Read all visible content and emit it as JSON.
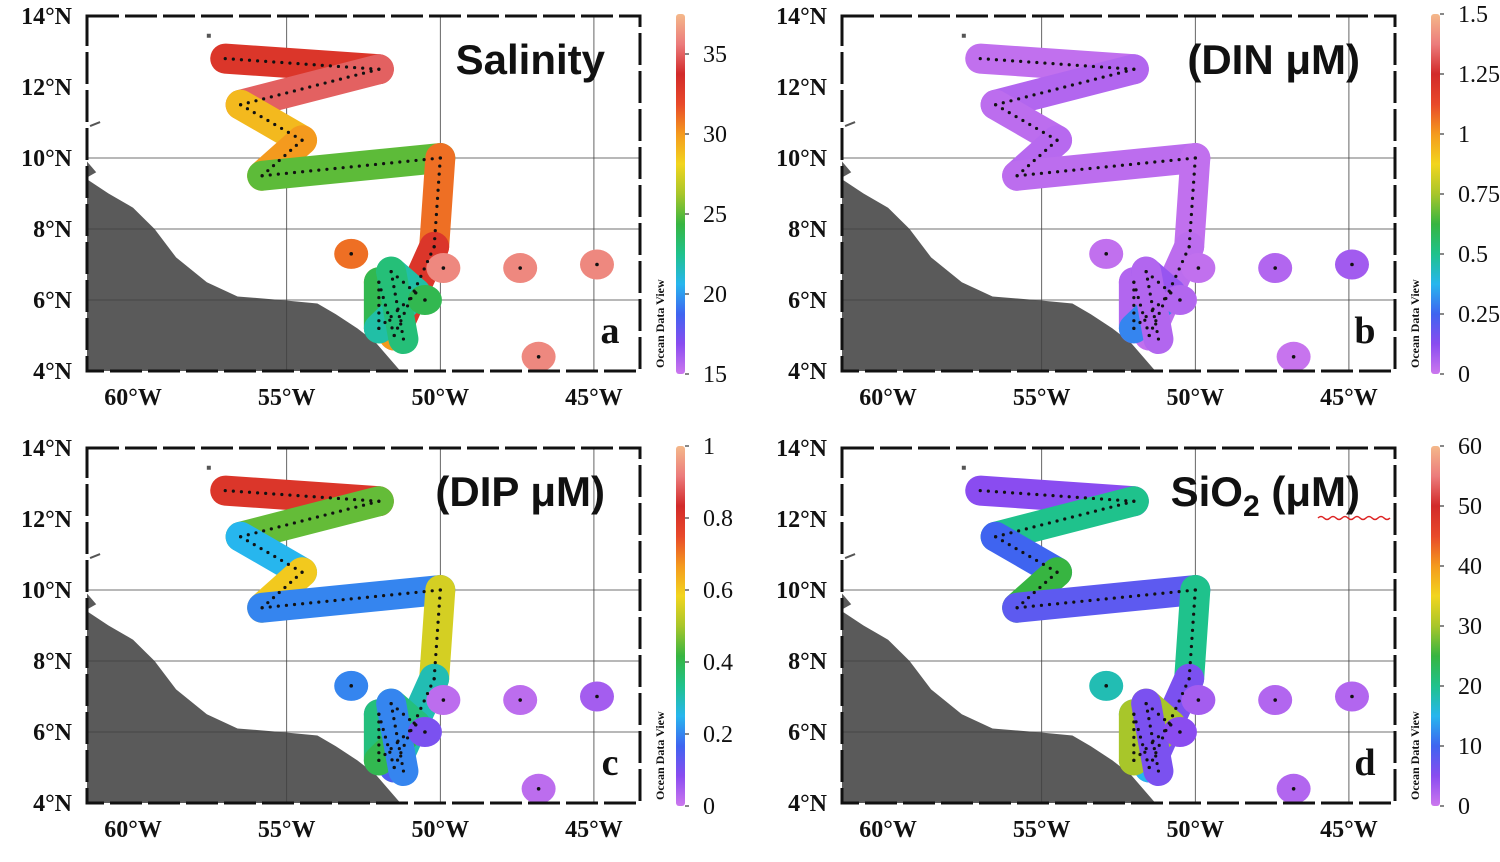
{
  "colors": {
    "land": "#5a5a5a",
    "grid": "#404040",
    "station": "#111111",
    "cbar_stops": [
      "#cc77ee",
      "#8a4cf0",
      "#3f64f0",
      "#27b6ee",
      "#1fc28c",
      "#37b541",
      "#a8c62a",
      "#f2d51e",
      "#f49a1e",
      "#e8492a",
      "#d22a2a",
      "#ec7c7c",
      "#f4b88a"
    ]
  },
  "axes": {
    "lat_labels": [
      "14°N",
      "12°N",
      "10°N",
      "8°N",
      "6°N",
      "4°N"
    ],
    "lon_labels": [
      "60°W",
      "55°W",
      "50°W",
      "45°W"
    ],
    "lat_range": [
      4,
      14
    ],
    "lon_range": [
      -61.5,
      -43.5
    ]
  },
  "colorbar_label": "Ocean Data View",
  "panels": [
    {
      "id": "a",
      "letter": "a",
      "title": "Salinity",
      "title_sub": "",
      "title_tail": "",
      "cbar_ticks": [
        "35",
        "30",
        "25",
        "20",
        "15"
      ],
      "cbar_values": [
        35,
        30,
        25,
        20,
        15
      ],
      "cbar_range": [
        15,
        37.5
      ],
      "segment_values": [
        33,
        35,
        29,
        30,
        25,
        31,
        33,
        30,
        24,
        22,
        22,
        23
      ]
    },
    {
      "id": "b",
      "letter": "b",
      "title": "(DIN μM)",
      "title_sub": "",
      "title_tail": "",
      "cbar_ticks": [
        "1.5",
        "1.25",
        "1",
        "0.75",
        "0.5",
        "0.25",
        "0"
      ],
      "cbar_values": [
        1.5,
        1.25,
        1,
        0.75,
        0.5,
        0.25,
        0
      ],
      "cbar_range": [
        0,
        1.5
      ],
      "segment_values": [
        0.02,
        0.05,
        0.03,
        0.04,
        0.03,
        0.02,
        0.03,
        0.02,
        0.05,
        0.3,
        0.1,
        0.05
      ]
    },
    {
      "id": "c",
      "letter": "c",
      "title": "(DIP μM)",
      "title_sub": "",
      "title_tail": "",
      "cbar_ticks": [
        "1",
        "0.8",
        "0.6",
        "0.4",
        "0.2",
        "0"
      ],
      "cbar_values": [
        1,
        0.8,
        0.6,
        0.4,
        0.2,
        0
      ],
      "cbar_range": [
        0,
        1
      ],
      "segment_values": [
        0.8,
        0.45,
        0.25,
        0.6,
        0.2,
        0.55,
        0.3,
        0.15,
        0.35,
        0.4,
        0.35,
        0.2
      ]
    },
    {
      "id": "d",
      "letter": "d",
      "title": "SiO",
      "title_sub": "2",
      "title_tail": " (μM)",
      "cbar_ticks": [
        "60",
        "50",
        "40",
        "30",
        "20",
        "10",
        "0"
      ],
      "cbar_values": [
        60,
        50,
        40,
        30,
        20,
        10,
        0
      ],
      "cbar_range": [
        0,
        60
      ],
      "segment_values": [
        5,
        20,
        10,
        25,
        8,
        20,
        6,
        15,
        30,
        30,
        30,
        6
      ]
    }
  ],
  "cruise_track": [
    {
      "lon": -57,
      "lat": 12.8
    },
    {
      "lon": -52,
      "lat": 12.5
    },
    {
      "lon": -56.5,
      "lat": 11.5
    },
    {
      "lon": -54.5,
      "lat": 10.5
    },
    {
      "lon": -55.8,
      "lat": 9.5
    },
    {
      "lon": -50,
      "lat": 10
    },
    {
      "lon": -50.2,
      "lat": 7.5
    },
    {
      "lon": -51.5,
      "lat": 5
    },
    {
      "lon": -52,
      "lat": 6.5
    },
    {
      "lon": -52,
      "lat": 5.2
    },
    {
      "lon": -50.8,
      "lat": 6.2
    },
    {
      "lon": -51.6,
      "lat": 6.8
    },
    {
      "lon": -51.2,
      "lat": 4.9
    }
  ],
  "extra_stations": [
    {
      "lon": -52.9,
      "lat": 7.3,
      "a": 31,
      "b": 0.02,
      "c": 0.2,
      "d": 18
    },
    {
      "lon": -49.9,
      "lat": 6.9,
      "a": 36,
      "b": 0.02,
      "c": 0.02,
      "d": 3
    },
    {
      "lon": -47.4,
      "lat": 6.9,
      "a": 36,
      "b": 0.05,
      "c": 0.02,
      "d": 2
    },
    {
      "lon": -44.9,
      "lat": 7.0,
      "a": 36,
      "b": 0.08,
      "c": 0.05,
      "d": 2
    },
    {
      "lon": -46.8,
      "lat": 4.4,
      "a": 36,
      "b": 0.01,
      "c": 0.02,
      "d": 2
    },
    {
      "lon": -50.5,
      "lat": 6.0,
      "a": 24,
      "b": 0.05,
      "c": 0.1,
      "d": 5
    }
  ]
}
